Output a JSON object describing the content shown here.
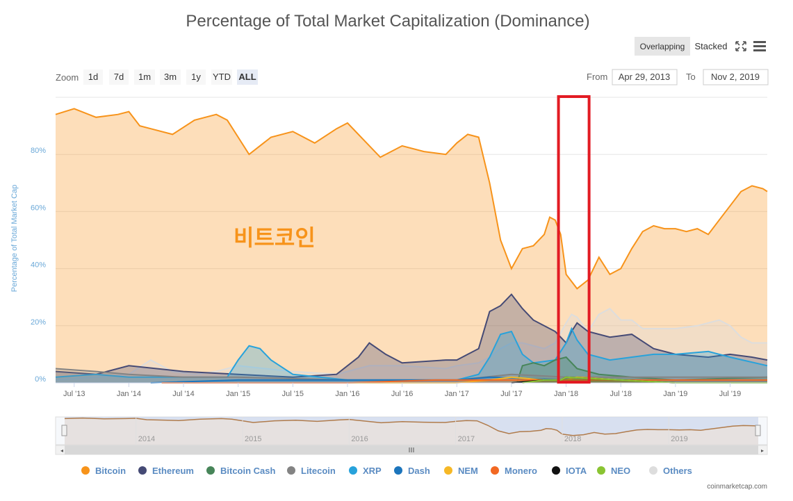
{
  "title": "Percentage of Total Market Capitalization (Dominance)",
  "view_toggle": {
    "overlapping": "Overlapping",
    "stacked": "Stacked",
    "active": "Overlapping"
  },
  "zoom": {
    "label": "Zoom",
    "buttons": [
      "1d",
      "7d",
      "1m",
      "3m",
      "1y",
      "YTD",
      "ALL"
    ],
    "active": "ALL"
  },
  "range": {
    "from_label": "From",
    "from": "Apr 29, 2013",
    "to_label": "To",
    "to": "Nov 2, 2019"
  },
  "credit": "coinmarketcap.com",
  "annotation": {
    "text": "비트코인",
    "color": "#f7931a",
    "highlight_color": "#e21b23",
    "highlight_start": "Jan '18",
    "highlight_end": "Mar '18"
  },
  "colors": {
    "bitcoin_fill": "#fde4c8",
    "bitcoin_line": "#f7931a",
    "gridline": "#e6e6e6",
    "axis_title": "#6aa8d8",
    "navigator_fill": "#ccd6eb"
  },
  "navigator": {
    "labels": [
      "2014",
      "2015",
      "2016",
      "2017",
      "2018",
      "2019"
    ]
  },
  "chart_data": {
    "type": "area",
    "title": "Percentage of Total Market Capitalization (Dominance)",
    "ylabel": "Percentage of Total Market Cap",
    "xlabel": "",
    "ylim": [
      0,
      100
    ],
    "yticks": [
      "0%",
      "20%",
      "40%",
      "60%",
      "80%"
    ],
    "xticks": [
      "Jul '13",
      "Jan '14",
      "Jul '14",
      "Jan '15",
      "Jul '15",
      "Jan '16",
      "Jul '16",
      "Jan '17",
      "Jul '17",
      "Jan '18",
      "Jul '18",
      "Jan '19",
      "Jul '19"
    ],
    "grid": true,
    "legend_position": "bottom",
    "series": [
      {
        "name": "Bitcoin",
        "color": "#f7931a",
        "x": [
          2013.33,
          2013.5,
          2013.7,
          2013.9,
          2014.0,
          2014.1,
          2014.2,
          2014.4,
          2014.6,
          2014.8,
          2014.9,
          2015.0,
          2015.1,
          2015.3,
          2015.5,
          2015.7,
          2015.9,
          2016.0,
          2016.15,
          2016.3,
          2016.5,
          2016.7,
          2016.9,
          2017.0,
          2017.1,
          2017.2,
          2017.3,
          2017.4,
          2017.5,
          2017.6,
          2017.7,
          2017.8,
          2017.85,
          2017.9,
          2017.95,
          2018.0,
          2018.1,
          2018.2,
          2018.3,
          2018.4,
          2018.5,
          2018.6,
          2018.7,
          2018.8,
          2018.9,
          2019.0,
          2019.1,
          2019.2,
          2019.3,
          2019.4,
          2019.5,
          2019.6,
          2019.7,
          2019.8,
          2019.84
        ],
        "y": [
          94,
          96,
          93,
          94,
          95,
          90,
          89,
          87,
          92,
          94,
          92,
          86,
          80,
          86,
          88,
          84,
          89,
          91,
          85,
          79,
          83,
          81,
          80,
          84,
          87,
          86,
          70,
          50,
          40,
          47,
          48,
          52,
          58,
          57,
          52,
          38,
          33,
          36,
          44,
          38,
          40,
          47,
          53,
          55,
          54,
          54,
          53,
          54,
          52,
          57,
          62,
          67,
          69,
          68,
          67
        ]
      },
      {
        "name": "Ethereum",
        "color": "#454a75",
        "x": [
          2013.33,
          2013.7,
          2014.0,
          2014.5,
          2015.0,
          2015.5,
          2015.9,
          2016.1,
          2016.2,
          2016.35,
          2016.5,
          2016.9,
          2017.0,
          2017.1,
          2017.2,
          2017.3,
          2017.4,
          2017.5,
          2017.6,
          2017.7,
          2017.9,
          2018.0,
          2018.05,
          2018.1,
          2018.2,
          2018.4,
          2018.6,
          2018.8,
          2019.0,
          2019.3,
          2019.5,
          2019.7,
          2019.84
        ],
        "y": [
          4,
          3,
          6,
          4,
          3,
          2,
          3,
          9,
          14,
          10,
          7,
          8,
          8,
          10,
          12,
          25,
          27,
          31,
          26,
          22,
          18,
          14,
          18,
          21,
          18,
          16,
          17,
          12,
          10,
          9,
          10,
          9,
          8
        ]
      },
      {
        "name": "Bitcoin Cash",
        "color": "#478559",
        "x": [
          2017.55,
          2017.6,
          2017.7,
          2017.8,
          2017.9,
          2018.0,
          2018.1,
          2018.3,
          2018.6,
          2019.0,
          2019.84
        ],
        "y": [
          0,
          6,
          7,
          6,
          8,
          9,
          5,
          3,
          2,
          1,
          2
        ]
      },
      {
        "name": "Litecoin",
        "color": "#838383",
        "x": [
          2013.33,
          2013.7,
          2014.0,
          2014.5,
          2015.0,
          2016.0,
          2017.0,
          2017.5,
          2018.0,
          2018.5,
          2019.0,
          2019.5,
          2019.84
        ],
        "y": [
          5,
          4,
          3,
          2,
          2,
          1,
          1,
          3,
          2,
          2,
          2,
          2,
          2
        ]
      },
      {
        "name": "XRP",
        "color": "#27a2db",
        "x": [
          2013.33,
          2013.7,
          2014.0,
          2014.5,
          2014.9,
          2015.0,
          2015.1,
          2015.2,
          2015.3,
          2015.5,
          2016.0,
          2016.5,
          2017.0,
          2017.2,
          2017.3,
          2017.4,
          2017.5,
          2017.6,
          2017.7,
          2017.9,
          2018.0,
          2018.05,
          2018.1,
          2018.2,
          2018.4,
          2018.6,
          2018.8,
          2019.0,
          2019.3,
          2019.5,
          2019.84
        ],
        "y": [
          2,
          3,
          2,
          2,
          2,
          8,
          13,
          12,
          8,
          3,
          1,
          1,
          1,
          3,
          9,
          17,
          18,
          10,
          7,
          8,
          14,
          19,
          15,
          10,
          8,
          9,
          10,
          10,
          11,
          9,
          6
        ]
      },
      {
        "name": "Dash",
        "color": "#1c75bc",
        "x": [
          2014.2,
          2015.0,
          2016.0,
          2017.0,
          2017.3,
          2018.0,
          2018.5,
          2019.0,
          2019.84
        ],
        "y": [
          0,
          1,
          1,
          1,
          2,
          1,
          1,
          1,
          1
        ]
      },
      {
        "name": "NEM",
        "color": "#f6b826",
        "x": [
          2015.3,
          2016.0,
          2017.0,
          2017.3,
          2017.5,
          2017.8,
          2018.0,
          2018.1,
          2018.5,
          2019.0,
          2019.84
        ],
        "y": [
          0,
          0,
          0,
          1,
          2,
          1,
          1,
          2,
          1,
          0,
          0
        ]
      },
      {
        "name": "Monero",
        "color": "#f26822",
        "x": [
          2014.3,
          2015.0,
          2016.0,
          2016.8,
          2017.0,
          2017.5,
          2018.0,
          2019.0,
          2019.84
        ],
        "y": [
          0,
          0,
          0,
          1,
          1,
          1,
          1,
          1,
          1
        ]
      },
      {
        "name": "IOTA",
        "color": "#111111",
        "x": [
          2017.5,
          2017.8,
          2017.95,
          2018.0,
          2018.5,
          2019.0,
          2019.84
        ],
        "y": [
          0,
          1,
          1,
          2,
          1,
          0,
          0
        ]
      },
      {
        "name": "NEO",
        "color": "#8ac432",
        "x": [
          2017.6,
          2017.8,
          2017.95,
          2018.0,
          2018.5,
          2019.0,
          2019.84
        ],
        "y": [
          0,
          1,
          1,
          2,
          1,
          0,
          0
        ]
      },
      {
        "name": "Others",
        "color": "#dddddd",
        "x": [
          2013.33,
          2013.7,
          2014.0,
          2014.2,
          2014.4,
          2014.6,
          2014.8,
          2015.0,
          2015.5,
          2015.9,
          2016.2,
          2016.5,
          2016.9,
          2017.0,
          2017.2,
          2017.3,
          2017.4,
          2017.5,
          2017.6,
          2017.7,
          2017.8,
          2017.9,
          2018.0,
          2018.05,
          2018.1,
          2018.2,
          2018.3,
          2018.4,
          2018.5,
          2018.6,
          2018.7,
          2018.8,
          2019.0,
          2019.2,
          2019.4,
          2019.5,
          2019.6,
          2019.7,
          2019.84
        ],
        "y": [
          1,
          2,
          3,
          8,
          4,
          3,
          4,
          6,
          4,
          3,
          6,
          6,
          5,
          6,
          7,
          9,
          12,
          14,
          14,
          13,
          12,
          14,
          21,
          24,
          23,
          18,
          24,
          26,
          22,
          22,
          19,
          19,
          19,
          20,
          22,
          20,
          16,
          14,
          14
        ]
      }
    ]
  },
  "legend": [
    {
      "name": "Bitcoin",
      "color": "#f7931a"
    },
    {
      "name": "Ethereum",
      "color": "#454a75"
    },
    {
      "name": "Bitcoin Cash",
      "color": "#478559"
    },
    {
      "name": "Litecoin",
      "color": "#838383"
    },
    {
      "name": "XRP",
      "color": "#27a2db"
    },
    {
      "name": "Dash",
      "color": "#1c75bc"
    },
    {
      "name": "NEM",
      "color": "#f6b826"
    },
    {
      "name": "Monero",
      "color": "#f26822"
    },
    {
      "name": "IOTA",
      "color": "#111111"
    },
    {
      "name": "NEO",
      "color": "#8ac432"
    },
    {
      "name": "Others",
      "color": "#dddddd"
    }
  ]
}
